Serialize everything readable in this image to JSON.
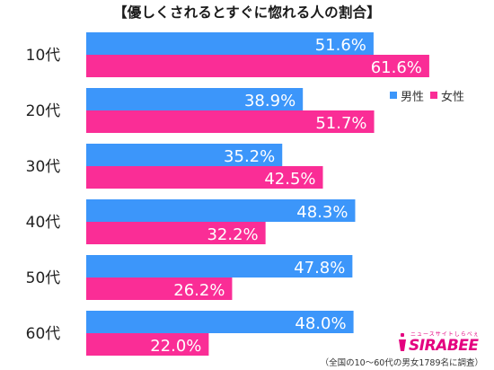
{
  "title": "【優しくされるとすぐに惚れる人の割合】",
  "footnote": "（全国の10〜60代の男女1789名に調査）",
  "logo": {
    "text": "SIRABEE",
    "sub": "ニュースサイトしらべぇ"
  },
  "colors": {
    "male": "#3c96fa",
    "female": "#fa2d96",
    "label": "#ffffff",
    "category": "#222222"
  },
  "chart_data": {
    "type": "bar",
    "orientation": "horizontal",
    "title": "【優しくされるとすぐに惚れる人の割合】",
    "categories": [
      "10代",
      "20代",
      "30代",
      "40代",
      "50代",
      "60代"
    ],
    "series": [
      {
        "name": "男性",
        "values": [
          51.6,
          38.9,
          35.2,
          48.3,
          47.8,
          48.0
        ]
      },
      {
        "name": "女性",
        "values": [
          61.6,
          51.7,
          42.5,
          32.2,
          26.2,
          22.0
        ]
      }
    ],
    "value_format": "%",
    "xlim": [
      0,
      68
    ],
    "grid": false,
    "legend": "top-right"
  }
}
